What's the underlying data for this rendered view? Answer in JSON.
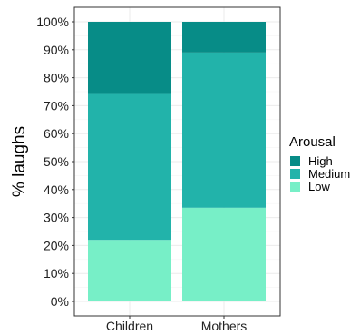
{
  "chart_data": {
    "type": "bar",
    "stacked": true,
    "categories": [
      "Children",
      "Mothers"
    ],
    "series": [
      {
        "name": "Low",
        "values": [
          22,
          33.5
        ],
        "color": "#77EFC7"
      },
      {
        "name": "Medium",
        "values": [
          52.5,
          55.5
        ],
        "color": "#22B3AA"
      },
      {
        "name": "High",
        "values": [
          25.5,
          11
        ],
        "color": "#078C87"
      }
    ],
    "ylabel": "% laughs",
    "xlabel": "",
    "ylim": [
      0,
      100
    ],
    "y_ticks": [
      "0%",
      "10%",
      "20%",
      "30%",
      "40%",
      "50%",
      "60%",
      "70%",
      "80%",
      "90%",
      "100%"
    ],
    "grid": true,
    "legend": {
      "title": "Arousal",
      "placement": "right",
      "entries": [
        "High",
        "Medium",
        "Low"
      ]
    }
  }
}
